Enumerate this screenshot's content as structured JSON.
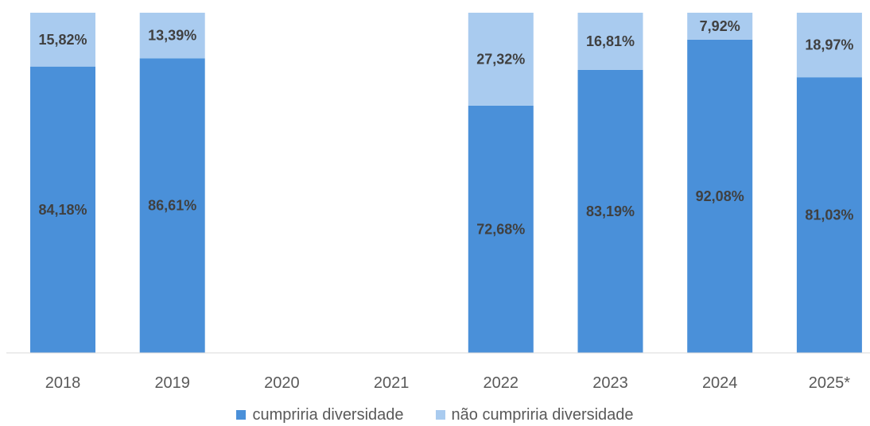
{
  "chart_data": {
    "type": "bar",
    "stacked": true,
    "categories": [
      "2018",
      "2019",
      "2020",
      "2021",
      "2022",
      "2023",
      "2024",
      "2025*"
    ],
    "series": [
      {
        "name": "cumpriria diversidade",
        "color": "#4A90D9",
        "values": [
          84.18,
          86.61,
          null,
          null,
          72.68,
          83.19,
          92.08,
          81.03
        ],
        "labels": [
          "84,18%",
          "86,61%",
          "",
          "",
          "72,68%",
          "83,19%",
          "92,08%",
          "81,03%"
        ]
      },
      {
        "name": "não cumpriria diversidade",
        "color": "#A9CBEF",
        "values": [
          15.82,
          13.39,
          null,
          null,
          27.32,
          16.81,
          7.92,
          18.97
        ],
        "labels": [
          "15,82%",
          "13,39%",
          "",
          "",
          "27,32%",
          "16,81%",
          "7,92%",
          "18,97%"
        ]
      }
    ],
    "ylim": [
      0,
      100
    ],
    "grid": false,
    "legend_position": "bottom",
    "title": "",
    "xlabel": "",
    "ylabel": ""
  }
}
